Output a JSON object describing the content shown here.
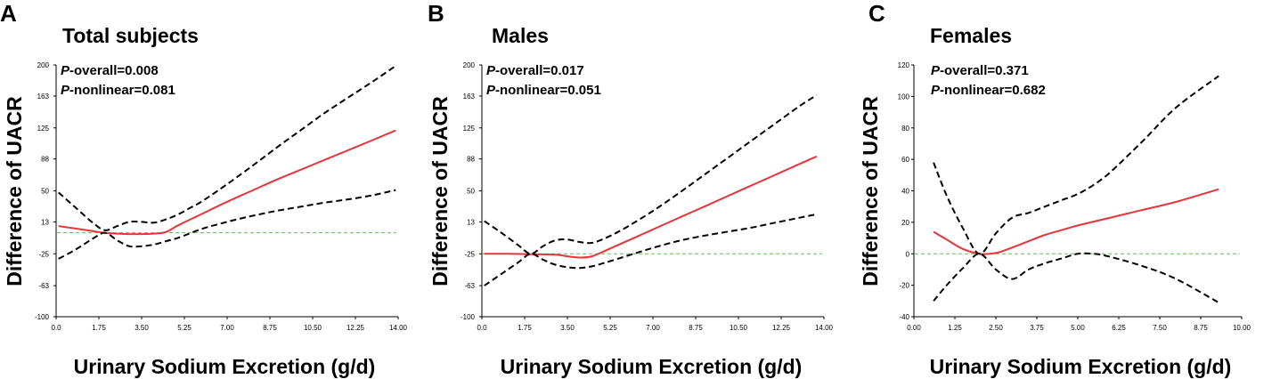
{
  "chart_data": [
    {
      "type": "line",
      "letter": "A",
      "title": "Total subjects",
      "p_overall_label": "P",
      "p_overall_text": "-overall=0.008",
      "p_nonlinear_label": "P",
      "p_nonlinear_text": "-nonlinear=0.081",
      "xlabel": "Urinary Sodium Excretion (g/d)",
      "ylabel": "Difference of  UACR",
      "xlim": [
        0,
        14
      ],
      "ylim": [
        -100,
        200
      ],
      "x_ticks": [
        0,
        1.75,
        3.5,
        5.25,
        7,
        8.75,
        10.5,
        12.25,
        14
      ],
      "x_tick_labels": [
        "0.0",
        "1.75",
        "3.50",
        "5.25",
        "7.00",
        "8.75",
        "10.50",
        "12.25",
        "14.00"
      ],
      "y_ticks": [
        -100,
        -63,
        -25,
        13,
        50,
        88,
        125,
        163,
        200
      ],
      "y_tick_labels": [
        "-100",
        "-63",
        "-25",
        "13",
        "50",
        "88",
        "125",
        "163",
        "200"
      ],
      "reference_y": 0,
      "series": [
        {
          "name": "estimate",
          "style": "solid",
          "x": [
            0.1,
            0.8,
            1.5,
            2.0,
            2.5,
            3.0,
            3.5,
            4.0,
            4.5,
            5.0,
            6.0,
            7.0,
            8.0,
            9.0,
            10.0,
            11.0,
            12.0,
            13.0,
            13.9
          ],
          "y": [
            8,
            5,
            2,
            0,
            -1,
            -1.5,
            -1.5,
            -1,
            1,
            9,
            23,
            37,
            50,
            63,
            75,
            87,
            99,
            111,
            122
          ]
        },
        {
          "name": "upper 95% CI",
          "style": "dashed",
          "x": [
            0.1,
            0.8,
            1.5,
            2.0,
            2.5,
            3.0,
            3.5,
            4.0,
            4.5,
            5.0,
            5.5,
            6.0,
            7.0,
            8.0,
            9.0,
            10.0,
            11.0,
            12.0,
            13.0,
            13.9
          ],
          "y": [
            48,
            30,
            12,
            3,
            8,
            13,
            13,
            12,
            16,
            22,
            30,
            38,
            58,
            79,
            101,
            122,
            143,
            162,
            181,
            199
          ]
        },
        {
          "name": "lower 95% CI",
          "style": "dashed",
          "x": [
            0.1,
            0.8,
            1.5,
            2.0,
            2.5,
            3.0,
            3.5,
            4.0,
            4.5,
            5.0,
            6.0,
            7.0,
            8.0,
            9.0,
            10.0,
            11.0,
            12.0,
            13.0,
            13.9
          ],
          "y": [
            -31,
            -20,
            -7,
            0,
            -9,
            -16,
            -16,
            -14,
            -10,
            -6,
            5,
            13,
            20,
            26,
            31,
            36,
            40,
            45,
            51
          ]
        }
      ]
    },
    {
      "type": "line",
      "letter": "B",
      "title": "Males",
      "p_overall_label": "P",
      "p_overall_text": "-overall=0.017",
      "p_nonlinear_label": "P",
      "p_nonlinear_text": "-nonlinear=0.051",
      "xlabel": "Urinary Sodium Excretion (g/d)",
      "ylabel": "Difference of  UACR",
      "xlim": [
        0,
        14
      ],
      "ylim": [
        -100,
        200
      ],
      "x_ticks": [
        0,
        1.75,
        3.5,
        5.25,
        7,
        8.75,
        10.5,
        12.25,
        14
      ],
      "x_tick_labels": [
        "0.0",
        "1.75",
        "3.50",
        "5.25",
        "7.00",
        "8.75",
        "10.50",
        "12.25",
        "14.00"
      ],
      "y_ticks": [
        -100,
        -63,
        -25,
        13,
        50,
        88,
        125,
        163,
        200
      ],
      "y_tick_labels": [
        "-100",
        "-63",
        "-25",
        "13",
        "50",
        "88",
        "125",
        "163",
        "200"
      ],
      "reference_y": -25,
      "series": [
        {
          "name": "estimate",
          "style": "solid",
          "x": [
            0.1,
            1.0,
            2.0,
            3.0,
            3.5,
            4.0,
            4.5,
            5.0,
            6.0,
            7.0,
            8.0,
            9.0,
            10.0,
            11.0,
            12.0,
            13.0,
            13.7
          ],
          "y": [
            -25,
            -25,
            -25.5,
            -26,
            -28,
            -29.5,
            -28,
            -22,
            -9,
            4,
            17,
            30,
            43,
            56,
            69,
            82,
            91
          ]
        },
        {
          "name": "upper 95% CI",
          "style": "dashed",
          "x": [
            0.1,
            0.8,
            1.5,
            2.0,
            2.5,
            3.0,
            3.5,
            4.0,
            4.5,
            5.0,
            5.5,
            6.0,
            7.0,
            8.0,
            9.0,
            10.0,
            11.0,
            12.0,
            13.0,
            13.7
          ],
          "y": [
            14,
            0,
            -15,
            -25,
            -16,
            -9,
            -8,
            -11,
            -12,
            -7,
            0,
            8,
            26,
            46,
            67,
            88,
            109,
            130,
            151,
            164
          ]
        },
        {
          "name": "lower 95% CI",
          "style": "dashed",
          "x": [
            0.1,
            0.8,
            1.5,
            2.0,
            2.5,
            3.0,
            3.5,
            4.0,
            4.5,
            5.0,
            6.0,
            7.0,
            8.0,
            9.0,
            10.0,
            11.0,
            12.0,
            13.0,
            13.7
          ],
          "y": [
            -63,
            -49,
            -35,
            -25,
            -32,
            -38,
            -41,
            -42,
            -40,
            -36,
            -27,
            -18,
            -10,
            -4,
            1,
            6,
            12,
            18,
            22
          ]
        }
      ]
    },
    {
      "type": "line",
      "letter": "C",
      "title": "Females",
      "p_overall_label": "P",
      "p_overall_text": "-overall=0.371",
      "p_nonlinear_label": "P",
      "p_nonlinear_text": "-nonlinear=0.682",
      "xlabel": "Urinary Sodium Excretion (g/d)",
      "ylabel": "Difference of  UACR",
      "xlim": [
        0,
        10
      ],
      "ylim": [
        -40,
        120
      ],
      "x_ticks": [
        0,
        1.25,
        2.5,
        3.75,
        5,
        6.25,
        7.5,
        8.75,
        10
      ],
      "x_tick_labels": [
        "0.00",
        "1.25",
        "2.50",
        "3.75",
        "5.00",
        "6.25",
        "7.50",
        "8.75",
        "10.00"
      ],
      "y_ticks": [
        -40,
        -20,
        0,
        20,
        40,
        60,
        80,
        100,
        120
      ],
      "y_tick_labels": [
        "-40",
        "-20",
        "0",
        "20",
        "40",
        "60",
        "80",
        "100",
        "120"
      ],
      "reference_y": 0,
      "series": [
        {
          "name": "estimate",
          "style": "solid",
          "x": [
            0.6,
            1.0,
            1.5,
            2.0,
            2.3,
            2.6,
            3.0,
            3.5,
            4.0,
            4.5,
            5.0,
            6.0,
            7.0,
            8.0,
            9.3
          ],
          "y": [
            14,
            9,
            3,
            0,
            0,
            1,
            4,
            8,
            12,
            15,
            18,
            23,
            28,
            33,
            41
          ]
        },
        {
          "name": "upper 95% CI",
          "style": "dashed",
          "x": [
            0.6,
            1.0,
            1.5,
            2.0,
            2.5,
            3.0,
            3.5,
            4.0,
            4.5,
            5.0,
            5.5,
            6.0,
            7.0,
            8.0,
            9.3
          ],
          "y": [
            58,
            37,
            16,
            0,
            13,
            23,
            26,
            30,
            34,
            38,
            44,
            52,
            72,
            93,
            113
          ]
        },
        {
          "name": "lower 95% CI",
          "style": "dashed",
          "x": [
            0.6,
            1.0,
            1.5,
            2.0,
            2.5,
            3.0,
            3.5,
            4.0,
            4.5,
            5.0,
            5.5,
            6.0,
            7.0,
            8.0,
            9.3
          ],
          "y": [
            -30,
            -20,
            -9,
            0,
            -10,
            -16,
            -10,
            -6,
            -3,
            0,
            0,
            -2,
            -8,
            -16,
            -31
          ]
        }
      ]
    }
  ]
}
